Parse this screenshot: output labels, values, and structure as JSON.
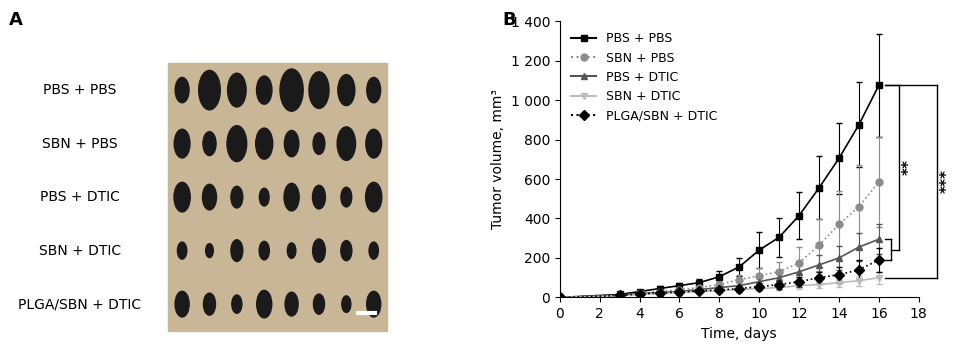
{
  "chart_data": [
    {
      "type": "photo",
      "title": "A",
      "row_labels": [
        "PBS + PBS",
        "SBN + PBS",
        "PBS + DTIC",
        "SBN + DTIC",
        "PLGA/SBN + DTIC"
      ]
    },
    {
      "type": "line",
      "title": "B",
      "x_label": "Time, days",
      "y_label": "Tumor volume, mm³",
      "x": [
        0,
        3,
        4,
        5,
        6,
        7,
        8,
        9,
        10,
        11,
        12,
        13,
        14,
        15,
        16
      ],
      "xlim": [
        0,
        18
      ],
      "xticks": [
        0,
        2,
        4,
        6,
        8,
        10,
        12,
        14,
        16,
        18
      ],
      "ylim": [
        0,
        1400
      ],
      "yticks": [
        0,
        200,
        400,
        600,
        800,
        {
          "value": 1000,
          "label": "1 000"
        },
        {
          "value": 1200,
          "label": "1 200"
        },
        {
          "value": 1400,
          "label": "1 400"
        }
      ],
      "legend": "upper left",
      "series": [
        {
          "name": "PBS + PBS",
          "color": "#000000",
          "marker": "square",
          "line_style": "solid",
          "values": [
            0,
            15,
            30,
            45,
            60,
            75,
            105,
            155,
            240,
            305,
            415,
            555,
            705,
            875,
            1075
          ],
          "errors": [
            0,
            5,
            10,
            12,
            15,
            20,
            30,
            45,
            90,
            100,
            120,
            160,
            180,
            215,
            260
          ]
        },
        {
          "name": "SBN + PBS",
          "color": "#8c8c8c",
          "marker": "circle",
          "line_style": "dotted",
          "values": [
            0,
            10,
            20,
            30,
            40,
            50,
            65,
            90,
            110,
            130,
            175,
            265,
            370,
            460,
            585
          ],
          "errors": [
            0,
            5,
            8,
            10,
            12,
            15,
            20,
            25,
            40,
            50,
            80,
            130,
            170,
            210,
            230
          ]
        },
        {
          "name": "PBS + DTIC",
          "color": "#555555",
          "marker": "triangle_up",
          "line_style": "solid",
          "values": [
            0,
            10,
            20,
            25,
            30,
            40,
            50,
            60,
            80,
            100,
            130,
            165,
            200,
            255,
            295
          ],
          "errors": [
            0,
            4,
            6,
            8,
            10,
            12,
            15,
            20,
            25,
            30,
            40,
            50,
            60,
            70,
            75
          ]
        },
        {
          "name": "SBN + DTIC",
          "color": "#bbbbbb",
          "marker": "triangle_down",
          "line_style": "solid",
          "values": [
            0,
            8,
            15,
            20,
            25,
            30,
            35,
            40,
            45,
            50,
            60,
            65,
            75,
            85,
            100
          ],
          "errors": [
            0,
            3,
            5,
            6,
            8,
            8,
            10,
            10,
            12,
            12,
            15,
            18,
            20,
            25,
            30
          ]
        },
        {
          "name": "PLGA/SBN + DTIC",
          "color": "#000000",
          "marker": "diamond",
          "line_style": "dotted",
          "values": [
            0,
            10,
            18,
            22,
            28,
            32,
            38,
            45,
            55,
            65,
            80,
            100,
            115,
            140,
            190
          ],
          "errors": [
            0,
            4,
            5,
            6,
            8,
            10,
            12,
            15,
            18,
            22,
            25,
            30,
            40,
            50,
            60
          ]
        }
      ],
      "annotations": [
        {
          "text": "**",
          "between": [
            "PBS + PBS",
            "PBS + DTIC",
            "PLGA/SBN + DTIC"
          ]
        },
        {
          "text": "***",
          "between": [
            "PBS + PBS",
            "SBN + DTIC"
          ]
        }
      ]
    }
  ]
}
